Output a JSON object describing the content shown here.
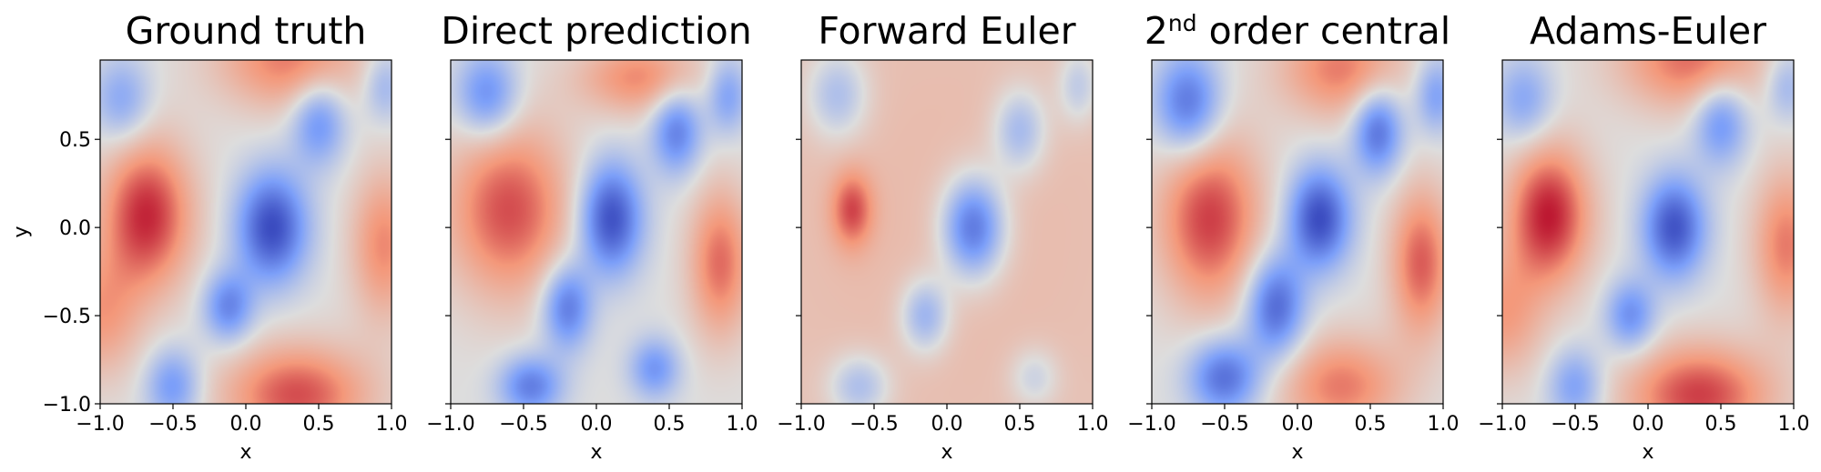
{
  "chart_data": [
    {
      "type": "heatmap",
      "title": "Ground truth",
      "xlabel": "x",
      "ylabel": "y",
      "xlim": [
        -1.0,
        1.0
      ],
      "ylim": [
        -1.0,
        0.95
      ],
      "xticks": [
        "−1.0",
        "−0.5",
        "0.0",
        "0.5",
        "1.0"
      ],
      "yticks": [
        "−1.0",
        "−0.5",
        "0.0",
        "0.5"
      ],
      "colormap": "coolwarm",
      "blobs": [
        {
          "x": -0.68,
          "y": 0.07,
          "a": 0.88,
          "sx": 0.22,
          "sy": 0.3
        },
        {
          "x": 0.18,
          "y": 0.0,
          "a": -1.0,
          "sx": 0.17,
          "sy": 0.22
        },
        {
          "x": -0.12,
          "y": -0.45,
          "a": -0.65,
          "sx": 0.12,
          "sy": 0.14
        },
        {
          "x": 0.5,
          "y": 0.6,
          "a": -0.6,
          "sx": 0.13,
          "sy": 0.17
        },
        {
          "x": 0.35,
          "y": -0.95,
          "a": 0.75,
          "sx": 0.35,
          "sy": 0.2
        },
        {
          "x": 0.3,
          "y": 0.95,
          "a": 0.6,
          "sx": 0.35,
          "sy": 0.2
        },
        {
          "x": -0.5,
          "y": -0.9,
          "a": -0.55,
          "sx": 0.13,
          "sy": 0.15
        },
        {
          "x": -0.85,
          "y": 0.72,
          "a": -0.45,
          "sx": 0.14,
          "sy": 0.17
        },
        {
          "x": 0.95,
          "y": 0.8,
          "a": -0.35,
          "sx": 0.1,
          "sy": 0.14
        },
        {
          "x": 0.95,
          "y": -0.1,
          "a": 0.55,
          "sx": 0.16,
          "sy": 0.3
        },
        {
          "x": -1.0,
          "y": -0.5,
          "a": 0.45,
          "sx": 0.2,
          "sy": 0.25
        }
      ]
    },
    {
      "type": "heatmap",
      "title": "Direct prediction",
      "xlabel": "x",
      "ylabel": "",
      "xlim": [
        -1.0,
        1.0
      ],
      "ylim": [
        -1.0,
        0.95
      ],
      "xticks": [
        "−1.0",
        "−0.5",
        "0.0",
        "0.5",
        "1.0"
      ],
      "yticks": [],
      "colormap": "coolwarm",
      "blobs": [
        {
          "x": -0.6,
          "y": 0.1,
          "a": 0.75,
          "sx": 0.3,
          "sy": 0.35
        },
        {
          "x": 0.1,
          "y": 0.05,
          "a": -1.0,
          "sx": 0.15,
          "sy": 0.22
        },
        {
          "x": -0.2,
          "y": -0.45,
          "a": -0.75,
          "sx": 0.12,
          "sy": 0.17
        },
        {
          "x": 0.55,
          "y": 0.55,
          "a": -0.7,
          "sx": 0.12,
          "sy": 0.17
        },
        {
          "x": -0.75,
          "y": 0.75,
          "a": -0.65,
          "sx": 0.15,
          "sy": 0.17
        },
        {
          "x": 0.9,
          "y": 0.75,
          "a": -0.5,
          "sx": 0.1,
          "sy": 0.15
        },
        {
          "x": -0.45,
          "y": -0.9,
          "a": -0.7,
          "sx": 0.15,
          "sy": 0.12
        },
        {
          "x": 0.4,
          "y": -0.8,
          "a": -0.55,
          "sx": 0.12,
          "sy": 0.12
        },
        {
          "x": 0.85,
          "y": -0.2,
          "a": 0.65,
          "sx": 0.15,
          "sy": 0.3
        },
        {
          "x": 0.3,
          "y": 0.85,
          "a": 0.55,
          "sx": 0.3,
          "sy": 0.15
        }
      ]
    },
    {
      "type": "heatmap",
      "title": "Forward Euler",
      "xlabel": "x",
      "ylabel": "",
      "xlim": [
        -1.0,
        1.0
      ],
      "ylim": [
        -1.0,
        0.95
      ],
      "xticks": [
        "−1.0",
        "−0.5",
        "0.0",
        "0.5",
        "1.0"
      ],
      "yticks": [],
      "colormap": "coolwarm",
      "blobs": [
        {
          "x": -0.65,
          "y": 0.1,
          "a": 0.55,
          "sx": 0.1,
          "sy": 0.15
        },
        {
          "x": 0.18,
          "y": 0.0,
          "a": -0.95,
          "sx": 0.15,
          "sy": 0.2
        },
        {
          "x": -0.15,
          "y": -0.5,
          "a": -0.55,
          "sx": 0.12,
          "sy": 0.15
        },
        {
          "x": 0.5,
          "y": 0.55,
          "a": -0.5,
          "sx": 0.13,
          "sy": 0.17
        },
        {
          "x": -0.75,
          "y": 0.75,
          "a": -0.45,
          "sx": 0.15,
          "sy": 0.18
        },
        {
          "x": -0.6,
          "y": -0.9,
          "a": -0.45,
          "sx": 0.15,
          "sy": 0.13
        },
        {
          "x": 0.9,
          "y": 0.8,
          "a": -0.35,
          "sx": 0.1,
          "sy": 0.15
        },
        {
          "x": 0.6,
          "y": -0.85,
          "a": -0.3,
          "sx": 0.12,
          "sy": 0.12
        },
        {
          "x": 0.0,
          "y": 0.0,
          "a": 0.25,
          "sx": 2.0,
          "sy": 2.0
        }
      ]
    },
    {
      "type": "heatmap",
      "title": "2nd order central",
      "title_base": "2",
      "title_sup": "nd",
      "title_rest": " order central",
      "xlabel": "x",
      "ylabel": "",
      "xlim": [
        -1.0,
        1.0
      ],
      "ylim": [
        -1.0,
        0.95
      ],
      "xticks": [
        "−1.0",
        "−0.5",
        "0.0",
        "0.5",
        "1.0"
      ],
      "yticks": [],
      "colormap": "coolwarm",
      "blobs": [
        {
          "x": -0.6,
          "y": 0.05,
          "a": 0.8,
          "sx": 0.25,
          "sy": 0.35
        },
        {
          "x": 0.15,
          "y": 0.05,
          "a": -1.0,
          "sx": 0.15,
          "sy": 0.2
        },
        {
          "x": -0.15,
          "y": -0.45,
          "a": -0.85,
          "sx": 0.14,
          "sy": 0.2
        },
        {
          "x": 0.55,
          "y": 0.55,
          "a": -0.8,
          "sx": 0.12,
          "sy": 0.17
        },
        {
          "x": -0.75,
          "y": 0.7,
          "a": -0.8,
          "sx": 0.16,
          "sy": 0.2
        },
        {
          "x": -0.5,
          "y": -0.85,
          "a": -0.8,
          "sx": 0.17,
          "sy": 0.15
        },
        {
          "x": 0.95,
          "y": 0.75,
          "a": -0.5,
          "sx": 0.1,
          "sy": 0.15
        },
        {
          "x": 0.85,
          "y": -0.2,
          "a": 0.7,
          "sx": 0.15,
          "sy": 0.3
        },
        {
          "x": 0.3,
          "y": -0.9,
          "a": 0.6,
          "sx": 0.3,
          "sy": 0.2
        },
        {
          "x": 0.3,
          "y": 0.9,
          "a": 0.6,
          "sx": 0.3,
          "sy": 0.2
        }
      ]
    },
    {
      "type": "heatmap",
      "title": "Adams-Euler",
      "xlabel": "x",
      "ylabel": "",
      "xlim": [
        -1.0,
        1.0
      ],
      "ylim": [
        -1.0,
        0.95
      ],
      "xticks": [
        "−1.0",
        "−0.5",
        "0.0",
        "0.5",
        "1.0"
      ],
      "yticks": [],
      "colormap": "coolwarm",
      "blobs": [
        {
          "x": -0.68,
          "y": 0.07,
          "a": 0.92,
          "sx": 0.2,
          "sy": 0.28
        },
        {
          "x": 0.18,
          "y": 0.0,
          "a": -0.95,
          "sx": 0.15,
          "sy": 0.2
        },
        {
          "x": -0.12,
          "y": -0.5,
          "a": -0.6,
          "sx": 0.12,
          "sy": 0.14
        },
        {
          "x": 0.5,
          "y": 0.6,
          "a": -0.6,
          "sx": 0.13,
          "sy": 0.17
        },
        {
          "x": 0.35,
          "y": -0.95,
          "a": 0.8,
          "sx": 0.35,
          "sy": 0.2
        },
        {
          "x": 0.3,
          "y": 0.95,
          "a": 0.65,
          "sx": 0.35,
          "sy": 0.2
        },
        {
          "x": -0.5,
          "y": -0.9,
          "a": -0.5,
          "sx": 0.13,
          "sy": 0.15
        },
        {
          "x": -0.85,
          "y": 0.72,
          "a": -0.45,
          "sx": 0.14,
          "sy": 0.17
        },
        {
          "x": 0.95,
          "y": 0.8,
          "a": -0.35,
          "sx": 0.1,
          "sy": 0.14
        },
        {
          "x": 0.95,
          "y": -0.1,
          "a": 0.6,
          "sx": 0.16,
          "sy": 0.3
        },
        {
          "x": -1.0,
          "y": -0.5,
          "a": 0.45,
          "sx": 0.2,
          "sy": 0.25
        }
      ]
    }
  ]
}
